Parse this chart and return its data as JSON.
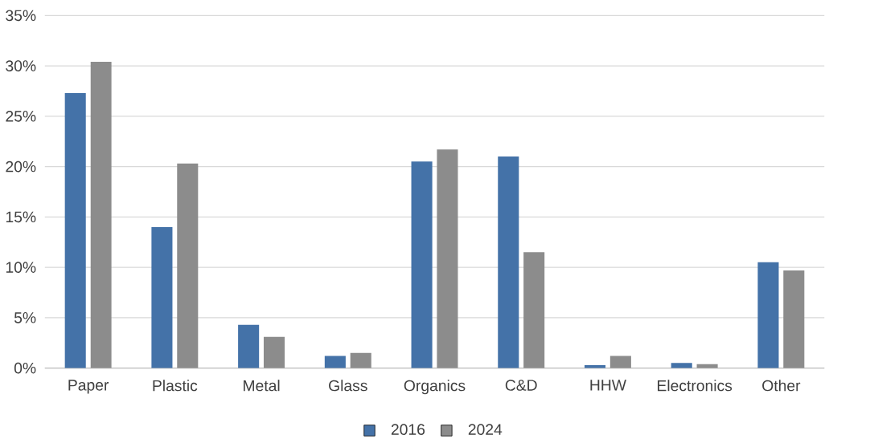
{
  "chart_data": {
    "type": "bar",
    "categories": [
      "Paper",
      "Plastic",
      "Metal",
      "Glass",
      "Organics",
      "C&D",
      "HHW",
      "Electronics",
      "Other"
    ],
    "series": [
      {
        "name": "2016",
        "color": "#4472a8",
        "values": [
          27.3,
          14.0,
          4.3,
          1.2,
          20.5,
          21.0,
          0.3,
          0.5,
          10.5
        ]
      },
      {
        "name": "2024",
        "color": "#8c8c8c",
        "values": [
          30.4,
          20.3,
          3.1,
          1.5,
          21.7,
          11.5,
          1.2,
          0.4,
          9.7
        ]
      }
    ],
    "ylim": [
      0,
      35
    ],
    "yticks": [
      {
        "value": 0,
        "label": "0%"
      },
      {
        "value": 5,
        "label": "5%"
      },
      {
        "value": 10,
        "label": "10%"
      },
      {
        "value": 15,
        "label": "15%"
      },
      {
        "value": 20,
        "label": "20%"
      },
      {
        "value": 25,
        "label": "25%"
      },
      {
        "value": 30,
        "label": "30%"
      },
      {
        "value": 35,
        "label": "35%"
      }
    ],
    "grid": "y",
    "legend": "bottom"
  }
}
